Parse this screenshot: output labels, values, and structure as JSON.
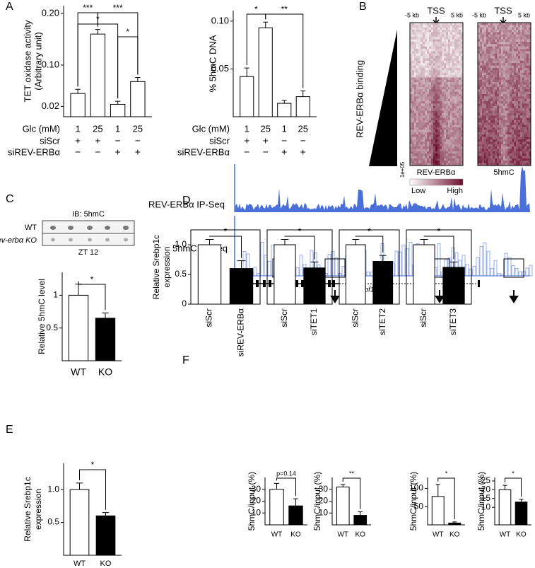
{
  "panels": {
    "letters": [
      "A",
      "B",
      "C",
      "D",
      "E",
      "F"
    ],
    "B": {
      "tss": "TSS",
      "left": "-5 kb",
      "right": "5 kb",
      "binding": "REV-ERBα binding",
      "scale": "1e+05",
      "maps": [
        "REV-ERBα",
        "5hmC"
      ],
      "low": "Low",
      "high": "High"
    },
    "C": {
      "blot_title": "IB: 5hmC",
      "rows": [
        "WT",
        "Rev-erbα KO"
      ],
      "time": "ZT 12"
    },
    "F": {
      "tracks": [
        "REV-ERBα IP-Seq",
        "5hmC IP-Seq"
      ],
      "gene": "Srebf1"
    }
  },
  "chart_data": [
    {
      "type": "bar",
      "ylabel": [
        "TET oxidase activity",
        "(Arbitrary unit)"
      ],
      "x_label": "Glc (mM)",
      "categories": [
        "1",
        "25",
        "1",
        "25"
      ],
      "conditions": [
        {
          "name": "siScr",
          "marks": [
            "+",
            "+",
            "−",
            "−"
          ]
        },
        {
          "name": "siREV-ERBα",
          "marks": [
            "−",
            "−",
            "+",
            "+"
          ]
        }
      ],
      "values": [
        0.045,
        0.16,
        0.024,
        0.068
      ],
      "errors": [
        0.008,
        0.009,
        0.006,
        0.008
      ],
      "colors": [
        "#ffffff",
        "#ffffff",
        "#ffffff",
        "#ffffff"
      ],
      "ylim": [
        0,
        0.215
      ],
      "yticks": [
        0.02,
        {
          "value": 0.1,
          "label": "0.10"
        },
        {
          "value": 0.2,
          "label": "0.20"
        }
      ],
      "annotations": [
        "***",
        "***",
        "*",
        "*"
      ]
    },
    {
      "type": "bar",
      "ylabel": [
        "% 5hmC DNA"
      ],
      "x_label": "Glc (mM)",
      "categories": [
        "1",
        "25",
        "1",
        "25"
      ],
      "conditions": [
        {
          "name": "siScr",
          "marks": [
            "+",
            "+",
            "−",
            "−"
          ]
        },
        {
          "name": "siREV-ERBα",
          "marks": [
            "−",
            "−",
            "+",
            "+"
          ]
        }
      ],
      "values": [
        0.042,
        0.093,
        0.014,
        0.021
      ],
      "errors": [
        0.009,
        0.006,
        0.003,
        0.006
      ],
      "colors": [
        "#ffffff",
        "#ffffff",
        "#ffffff",
        "#ffffff"
      ],
      "ylim": [
        0,
        0.111
      ],
      "yticks": [
        0.05,
        {
          "value": 0.1,
          "label": "0.10"
        }
      ],
      "annotations": [
        "*",
        "**"
      ]
    },
    {
      "type": "bar",
      "ylabel": [
        "Relative 5hmC level"
      ],
      "categories": [
        "WT",
        "KO"
      ],
      "values": [
        1.0,
        0.65
      ],
      "errors": [
        0.17,
        0.08
      ],
      "colors": [
        "#ffffff",
        "#000000"
      ],
      "ylim": [
        0,
        1.35
      ],
      "yticks": [
        0.5,
        1
      ],
      "annotations": [
        "*"
      ]
    },
    {
      "type": "bar",
      "ylabel": [
        "Relative Srebp1c",
        "expression"
      ],
      "categories": [
        "siScr",
        "siREV-ERBα"
      ],
      "values": [
        1.0,
        0.6
      ],
      "errors": [
        0.09,
        0.13
      ],
      "colors": [
        "#ffffff",
        "#000000"
      ],
      "ylim": [
        0,
        1.25
      ],
      "yticks": [
        0,
        0.5,
        {
          "value": 1,
          "label": "1.0"
        }
      ],
      "annotations": [
        "*"
      ]
    },
    {
      "type": "bar",
      "categories": [
        "siScr",
        "siTET1"
      ],
      "values": [
        1.0,
        0.61
      ],
      "errors": [
        0.09,
        0.1
      ],
      "colors": [
        "#ffffff",
        "#000000"
      ],
      "ylim": [
        0,
        1.25
      ],
      "annotations": [
        "*"
      ]
    },
    {
      "type": "bar",
      "categories": [
        "siScr",
        "siTET2"
      ],
      "values": [
        1.0,
        0.72
      ],
      "errors": [
        0.09,
        0.1
      ],
      "colors": [
        "#ffffff",
        "#000000"
      ],
      "ylim": [
        0,
        1.25
      ],
      "annotations": [
        "*"
      ]
    },
    {
      "type": "bar",
      "categories": [
        "siScr",
        "siTET3"
      ],
      "values": [
        1.0,
        0.62
      ],
      "errors": [
        0.09,
        0.09
      ],
      "colors": [
        "#ffffff",
        "#000000"
      ],
      "ylim": [
        0,
        1.25
      ],
      "annotations": [
        "*"
      ]
    },
    {
      "type": "bar",
      "ylabel": [
        "Relative Srebp1c",
        "expression"
      ],
      "categories": [
        "WT",
        "KO"
      ],
      "values": [
        1.0,
        0.6
      ],
      "errors": [
        0.1,
        0.05
      ],
      "colors": [
        "#ffffff",
        "#000000"
      ],
      "ylim": [
        0,
        1.4
      ],
      "yticks": [
        0.5,
        {
          "value": 1,
          "label": "1.0"
        }
      ],
      "annotations": [
        "*"
      ]
    },
    {
      "type": "bar",
      "ylabel": [
        "5hmC/input (%)"
      ],
      "categories": [
        "WT",
        "KO"
      ],
      "values": [
        30,
        16
      ],
      "errors": [
        5,
        6
      ],
      "colors": [
        "#ffffff",
        "#000000"
      ],
      "ylim": [
        0,
        40
      ],
      "yticks": [
        10,
        20,
        30
      ],
      "annotations": [
        "p=0.14"
      ]
    },
    {
      "type": "bar",
      "ylabel": [
        "5hmC/input (%)"
      ],
      "categories": [
        "WT",
        "KO"
      ],
      "values": [
        32,
        8
      ],
      "errors": [
        2,
        3
      ],
      "colors": [
        "#ffffff",
        "#000000"
      ],
      "ylim": [
        0,
        40
      ],
      "yticks": [
        10,
        20,
        30
      ],
      "annotations": [
        "**"
      ]
    },
    {
      "type": "bar",
      "ylabel": [
        "5hmC/input (%)"
      ],
      "categories": [
        "WT",
        "KO"
      ],
      "values": [
        78,
        5
      ],
      "errors": [
        33,
        3
      ],
      "colors": [
        "#ffffff",
        "#000000"
      ],
      "ylim": [
        0,
        130
      ],
      "yticks": [
        50,
        100
      ],
      "annotations": [
        "*"
      ]
    },
    {
      "type": "bar",
      "ylabel": [
        "5hmC/input (%)"
      ],
      "categories": [
        "WT",
        "KO"
      ],
      "values": [
        20,
        13
      ],
      "errors": [
        2.5,
        1.5
      ],
      "colors": [
        "#ffffff",
        "#000000"
      ],
      "ylim": [
        0,
        27
      ],
      "yticks": [
        10,
        15,
        20,
        25
      ],
      "annotations": [
        "*"
      ]
    }
  ]
}
